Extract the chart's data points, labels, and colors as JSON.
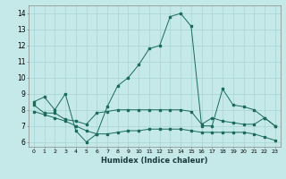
{
  "xlabel": "Humidex (Indice chaleur)",
  "xlim": [
    -0.5,
    23.5
  ],
  "ylim": [
    5.7,
    14.5
  ],
  "yticks": [
    6,
    7,
    8,
    9,
    10,
    11,
    12,
    13,
    14
  ],
  "xticks": [
    0,
    1,
    2,
    3,
    4,
    5,
    6,
    7,
    8,
    9,
    10,
    11,
    12,
    13,
    14,
    15,
    16,
    17,
    18,
    19,
    20,
    21,
    22,
    23
  ],
  "bg_color": "#c5e8e8",
  "line_color": "#1a6b5a",
  "grid_color": "#a8d4d4",
  "line1_x": [
    0,
    1,
    2,
    3,
    4,
    5,
    6,
    7,
    8,
    9,
    10,
    11,
    12,
    13,
    14,
    15,
    16,
    17,
    18,
    19,
    20,
    21,
    22,
    23
  ],
  "line1_y": [
    8.5,
    8.8,
    8.0,
    9.0,
    6.7,
    6.0,
    6.5,
    8.2,
    9.5,
    10.0,
    10.8,
    11.8,
    12.0,
    13.8,
    14.0,
    13.2,
    7.0,
    7.0,
    9.3,
    8.3,
    8.2,
    8.0,
    7.5,
    7.0
  ],
  "line2_x": [
    0,
    1,
    2,
    3,
    4,
    5,
    6,
    7,
    8,
    9,
    10,
    11,
    12,
    13,
    14,
    15,
    16,
    17,
    18,
    19,
    20,
    21,
    22,
    23
  ],
  "line2_y": [
    8.3,
    7.8,
    7.8,
    7.4,
    7.3,
    7.1,
    7.8,
    7.9,
    8.0,
    8.0,
    8.0,
    8.0,
    8.0,
    8.0,
    8.0,
    7.9,
    7.1,
    7.5,
    7.3,
    7.2,
    7.1,
    7.1,
    7.5,
    7.0
  ],
  "line3_x": [
    0,
    1,
    2,
    3,
    4,
    5,
    6,
    7,
    8,
    9,
    10,
    11,
    12,
    13,
    14,
    15,
    16,
    17,
    18,
    19,
    20,
    21,
    22,
    23
  ],
  "line3_y": [
    7.9,
    7.7,
    7.5,
    7.3,
    7.0,
    6.7,
    6.5,
    6.5,
    6.6,
    6.7,
    6.7,
    6.8,
    6.8,
    6.8,
    6.8,
    6.7,
    6.6,
    6.6,
    6.6,
    6.6,
    6.6,
    6.5,
    6.3,
    6.1
  ]
}
